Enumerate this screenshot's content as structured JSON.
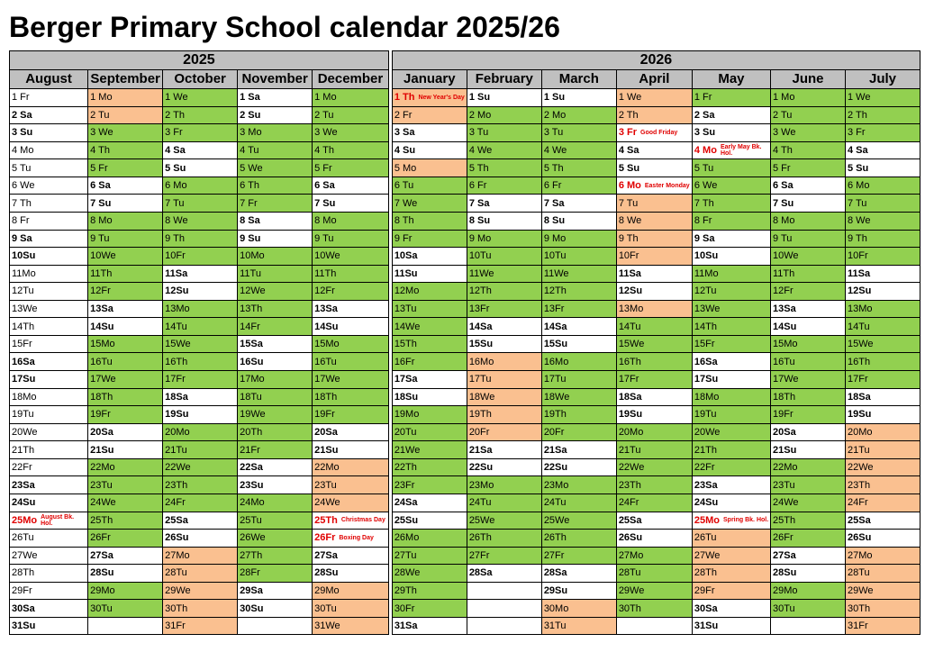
{
  "title": "Berger Primary School calendar 2025/26",
  "years": [
    "2025",
    "2026"
  ],
  "months": [
    "August",
    "September",
    "October",
    "November",
    "December",
    "January",
    "February",
    "March",
    "April",
    "May",
    "June",
    "July"
  ],
  "colors": {
    "school": "#92d050",
    "holiday": "#fac090",
    "weekend": "#ffffff",
    "bank_holiday_text": "#e00000",
    "header": "#c0c0c0"
  },
  "calendar": [
    [
      [
        "1 Fr",
        "w"
      ],
      [
        "2 Sa",
        "wb"
      ],
      [
        "3 Su",
        "wb"
      ],
      [
        "4 Mo",
        "w"
      ],
      [
        "5 Tu",
        "w"
      ],
      [
        "6 We",
        "w"
      ],
      [
        "7 Th",
        "w"
      ],
      [
        "8 Fr",
        "w"
      ],
      [
        "9 Sa",
        "wb"
      ],
      [
        "10Su",
        "wb"
      ],
      [
        "11Mo",
        "w"
      ],
      [
        "12Tu",
        "w"
      ],
      [
        "13We",
        "w"
      ],
      [
        "14Th",
        "w"
      ],
      [
        "15Fr",
        "w"
      ],
      [
        "16Sa",
        "wb"
      ],
      [
        "17Su",
        "wb"
      ],
      [
        "18Mo",
        "w"
      ],
      [
        "19Tu",
        "w"
      ],
      [
        "20We",
        "w"
      ],
      [
        "21Th",
        "w"
      ],
      [
        "22Fr",
        "w"
      ],
      [
        "23Sa",
        "wb"
      ],
      [
        "24Su",
        "wb"
      ],
      [
        "25Mo",
        "wh",
        "August Bk. Hol."
      ],
      [
        "26Tu",
        "w"
      ],
      [
        "27We",
        "w"
      ],
      [
        "28Th",
        "w"
      ],
      [
        "29Fr",
        "w"
      ],
      [
        "30Sa",
        "wb"
      ],
      [
        "31Su",
        "wb"
      ]
    ],
    [
      [
        "1 Mo",
        "o"
      ],
      [
        "2 Tu",
        "o"
      ],
      [
        "3 We",
        "g"
      ],
      [
        "4 Th",
        "g"
      ],
      [
        "5 Fr",
        "g"
      ],
      [
        "6 Sa",
        "wb"
      ],
      [
        "7 Su",
        "wb"
      ],
      [
        "8 Mo",
        "g"
      ],
      [
        "9 Tu",
        "g"
      ],
      [
        "10We",
        "g"
      ],
      [
        "11Th",
        "g"
      ],
      [
        "12Fr",
        "g"
      ],
      [
        "13Sa",
        "wb"
      ],
      [
        "14Su",
        "wb"
      ],
      [
        "15Mo",
        "g"
      ],
      [
        "16Tu",
        "g"
      ],
      [
        "17We",
        "g"
      ],
      [
        "18Th",
        "g"
      ],
      [
        "19Fr",
        "g"
      ],
      [
        "20Sa",
        "wb"
      ],
      [
        "21Su",
        "wb"
      ],
      [
        "22Mo",
        "g"
      ],
      [
        "23Tu",
        "g"
      ],
      [
        "24We",
        "g"
      ],
      [
        "25Th",
        "g"
      ],
      [
        "26Fr",
        "g"
      ],
      [
        "27Sa",
        "wb"
      ],
      [
        "28Su",
        "wb"
      ],
      [
        "29Mo",
        "g"
      ],
      [
        "30Tu",
        "g"
      ],
      [
        "",
        "w"
      ]
    ],
    [
      [
        "1 We",
        "g"
      ],
      [
        "2 Th",
        "g"
      ],
      [
        "3 Fr",
        "g"
      ],
      [
        "4 Sa",
        "wb"
      ],
      [
        "5 Su",
        "wb"
      ],
      [
        "6 Mo",
        "g"
      ],
      [
        "7 Tu",
        "g"
      ],
      [
        "8 We",
        "g"
      ],
      [
        "9 Th",
        "g"
      ],
      [
        "10Fr",
        "g"
      ],
      [
        "11Sa",
        "wb"
      ],
      [
        "12Su",
        "wb"
      ],
      [
        "13Mo",
        "g"
      ],
      [
        "14Tu",
        "g"
      ],
      [
        "15We",
        "g"
      ],
      [
        "16Th",
        "g"
      ],
      [
        "17Fr",
        "g"
      ],
      [
        "18Sa",
        "wb"
      ],
      [
        "19Su",
        "wb"
      ],
      [
        "20Mo",
        "g"
      ],
      [
        "21Tu",
        "g"
      ],
      [
        "22We",
        "g"
      ],
      [
        "23Th",
        "g"
      ],
      [
        "24Fr",
        "g"
      ],
      [
        "25Sa",
        "wb"
      ],
      [
        "26Su",
        "wb"
      ],
      [
        "27Mo",
        "o"
      ],
      [
        "28Tu",
        "o"
      ],
      [
        "29We",
        "o"
      ],
      [
        "30Th",
        "o"
      ],
      [
        "31Fr",
        "o"
      ]
    ],
    [
      [
        "1 Sa",
        "wb"
      ],
      [
        "2 Su",
        "wb"
      ],
      [
        "3 Mo",
        "g"
      ],
      [
        "4 Tu",
        "g"
      ],
      [
        "5 We",
        "g"
      ],
      [
        "6 Th",
        "g"
      ],
      [
        "7 Fr",
        "g"
      ],
      [
        "8 Sa",
        "wb"
      ],
      [
        "9 Su",
        "wb"
      ],
      [
        "10Mo",
        "g"
      ],
      [
        "11Tu",
        "g"
      ],
      [
        "12We",
        "g"
      ],
      [
        "13Th",
        "g"
      ],
      [
        "14Fr",
        "g"
      ],
      [
        "15Sa",
        "wb"
      ],
      [
        "16Su",
        "wb"
      ],
      [
        "17Mo",
        "g"
      ],
      [
        "18Tu",
        "g"
      ],
      [
        "19We",
        "g"
      ],
      [
        "20Th",
        "g"
      ],
      [
        "21Fr",
        "g"
      ],
      [
        "22Sa",
        "wb"
      ],
      [
        "23Su",
        "wb"
      ],
      [
        "24Mo",
        "g"
      ],
      [
        "25Tu",
        "g"
      ],
      [
        "26We",
        "g"
      ],
      [
        "27Th",
        "g"
      ],
      [
        "28Fr",
        "g"
      ],
      [
        "29Sa",
        "wb"
      ],
      [
        "30Su",
        "wb"
      ],
      [
        "",
        "w"
      ]
    ],
    [
      [
        "1 Mo",
        "g"
      ],
      [
        "2 Tu",
        "g"
      ],
      [
        "3 We",
        "g"
      ],
      [
        "4 Th",
        "g"
      ],
      [
        "5 Fr",
        "g"
      ],
      [
        "6 Sa",
        "wb"
      ],
      [
        "7 Su",
        "wb"
      ],
      [
        "8 Mo",
        "g"
      ],
      [
        "9 Tu",
        "g"
      ],
      [
        "10We",
        "g"
      ],
      [
        "11Th",
        "g"
      ],
      [
        "12Fr",
        "g"
      ],
      [
        "13Sa",
        "wb"
      ],
      [
        "14Su",
        "wb"
      ],
      [
        "15Mo",
        "g"
      ],
      [
        "16Tu",
        "g"
      ],
      [
        "17We",
        "g"
      ],
      [
        "18Th",
        "g"
      ],
      [
        "19Fr",
        "g"
      ],
      [
        "20Sa",
        "wb"
      ],
      [
        "21Su",
        "wb"
      ],
      [
        "22Mo",
        "o"
      ],
      [
        "23Tu",
        "o"
      ],
      [
        "24We",
        "o"
      ],
      [
        "25Th",
        "wh",
        "Christmas Day"
      ],
      [
        "26Fr",
        "wh",
        "Boxing Day"
      ],
      [
        "27Sa",
        "wb"
      ],
      [
        "28Su",
        "wb"
      ],
      [
        "29Mo",
        "o"
      ],
      [
        "30Tu",
        "o"
      ],
      [
        "31We",
        "o"
      ]
    ],
    [
      [
        "1 Th",
        "oh",
        "New Year's Day"
      ],
      [
        "2 Fr",
        "o"
      ],
      [
        "3 Sa",
        "wb"
      ],
      [
        "4 Su",
        "wb"
      ],
      [
        "5 Mo",
        "o"
      ],
      [
        "6 Tu",
        "g"
      ],
      [
        "7 We",
        "g"
      ],
      [
        "8 Th",
        "g"
      ],
      [
        "9 Fr",
        "g"
      ],
      [
        "10Sa",
        "wb"
      ],
      [
        "11Su",
        "wb"
      ],
      [
        "12Mo",
        "g"
      ],
      [
        "13Tu",
        "g"
      ],
      [
        "14We",
        "g"
      ],
      [
        "15Th",
        "g"
      ],
      [
        "16Fr",
        "g"
      ],
      [
        "17Sa",
        "wb"
      ],
      [
        "18Su",
        "wb"
      ],
      [
        "19Mo",
        "g"
      ],
      [
        "20Tu",
        "g"
      ],
      [
        "21We",
        "g"
      ],
      [
        "22Th",
        "g"
      ],
      [
        "23Fr",
        "g"
      ],
      [
        "24Sa",
        "wb"
      ],
      [
        "25Su",
        "wb"
      ],
      [
        "26Mo",
        "g"
      ],
      [
        "27Tu",
        "g"
      ],
      [
        "28We",
        "g"
      ],
      [
        "29Th",
        "g"
      ],
      [
        "30Fr",
        "g"
      ],
      [
        "31Sa",
        "wb"
      ]
    ],
    [
      [
        "1 Su",
        "wb"
      ],
      [
        "2 Mo",
        "g"
      ],
      [
        "3 Tu",
        "g"
      ],
      [
        "4 We",
        "g"
      ],
      [
        "5 Th",
        "g"
      ],
      [
        "6 Fr",
        "g"
      ],
      [
        "7 Sa",
        "wb"
      ],
      [
        "8 Su",
        "wb"
      ],
      [
        "9 Mo",
        "g"
      ],
      [
        "10Tu",
        "g"
      ],
      [
        "11We",
        "g"
      ],
      [
        "12Th",
        "g"
      ],
      [
        "13Fr",
        "g"
      ],
      [
        "14Sa",
        "wb"
      ],
      [
        "15Su",
        "wb"
      ],
      [
        "16Mo",
        "o"
      ],
      [
        "17Tu",
        "o"
      ],
      [
        "18We",
        "o"
      ],
      [
        "19Th",
        "o"
      ],
      [
        "20Fr",
        "o"
      ],
      [
        "21Sa",
        "wb"
      ],
      [
        "22Su",
        "wb"
      ],
      [
        "23Mo",
        "g"
      ],
      [
        "24Tu",
        "g"
      ],
      [
        "25We",
        "g"
      ],
      [
        "26Th",
        "g"
      ],
      [
        "27Fr",
        "g"
      ],
      [
        "28Sa",
        "wb"
      ],
      [
        "",
        "w"
      ],
      [
        "",
        "w"
      ],
      [
        "",
        "w"
      ]
    ],
    [
      [
        "1 Su",
        "wb"
      ],
      [
        "2 Mo",
        "g"
      ],
      [
        "3 Tu",
        "g"
      ],
      [
        "4 We",
        "g"
      ],
      [
        "5 Th",
        "g"
      ],
      [
        "6 Fr",
        "g"
      ],
      [
        "7 Sa",
        "wb"
      ],
      [
        "8 Su",
        "wb"
      ],
      [
        "9 Mo",
        "g"
      ],
      [
        "10Tu",
        "g"
      ],
      [
        "11We",
        "g"
      ],
      [
        "12Th",
        "g"
      ],
      [
        "13Fr",
        "g"
      ],
      [
        "14Sa",
        "wb"
      ],
      [
        "15Su",
        "wb"
      ],
      [
        "16Mo",
        "g"
      ],
      [
        "17Tu",
        "g"
      ],
      [
        "18We",
        "g"
      ],
      [
        "19Th",
        "g"
      ],
      [
        "20Fr",
        "g"
      ],
      [
        "21Sa",
        "wb"
      ],
      [
        "22Su",
        "wb"
      ],
      [
        "23Mo",
        "g"
      ],
      [
        "24Tu",
        "g"
      ],
      [
        "25We",
        "g"
      ],
      [
        "26Th",
        "g"
      ],
      [
        "27Fr",
        "g"
      ],
      [
        "28Sa",
        "wb"
      ],
      [
        "29Su",
        "wb"
      ],
      [
        "30Mo",
        "o"
      ],
      [
        "31Tu",
        "o"
      ]
    ],
    [
      [
        "1 We",
        "o"
      ],
      [
        "2 Th",
        "o"
      ],
      [
        "3 Fr",
        "wh",
        "Good Friday"
      ],
      [
        "4 Sa",
        "wb"
      ],
      [
        "5 Su",
        "wb"
      ],
      [
        "6 Mo",
        "wh",
        "Easter Monday"
      ],
      [
        "7 Tu",
        "o"
      ],
      [
        "8 We",
        "o"
      ],
      [
        "9 Th",
        "o"
      ],
      [
        "10Fr",
        "o"
      ],
      [
        "11Sa",
        "wb"
      ],
      [
        "12Su",
        "wb"
      ],
      [
        "13Mo",
        "o"
      ],
      [
        "14Tu",
        "g"
      ],
      [
        "15We",
        "g"
      ],
      [
        "16Th",
        "g"
      ],
      [
        "17Fr",
        "g"
      ],
      [
        "18Sa",
        "wb"
      ],
      [
        "19Su",
        "wb"
      ],
      [
        "20Mo",
        "g"
      ],
      [
        "21Tu",
        "g"
      ],
      [
        "22We",
        "g"
      ],
      [
        "23Th",
        "g"
      ],
      [
        "24Fr",
        "g"
      ],
      [
        "25Sa",
        "wb"
      ],
      [
        "26Su",
        "wb"
      ],
      [
        "27Mo",
        "g"
      ],
      [
        "28Tu",
        "g"
      ],
      [
        "29We",
        "g"
      ],
      [
        "30Th",
        "g"
      ],
      [
        "",
        "w"
      ]
    ],
    [
      [
        "1 Fr",
        "g"
      ],
      [
        "2 Sa",
        "wb"
      ],
      [
        "3 Su",
        "wb"
      ],
      [
        "4 Mo",
        "wh",
        "Early May Bk. Hol."
      ],
      [
        "5 Tu",
        "g"
      ],
      [
        "6 We",
        "g"
      ],
      [
        "7 Th",
        "g"
      ],
      [
        "8 Fr",
        "g"
      ],
      [
        "9 Sa",
        "wb"
      ],
      [
        "10Su",
        "wb"
      ],
      [
        "11Mo",
        "g"
      ],
      [
        "12Tu",
        "g"
      ],
      [
        "13We",
        "g"
      ],
      [
        "14Th",
        "g"
      ],
      [
        "15Fr",
        "g"
      ],
      [
        "16Sa",
        "wb"
      ],
      [
        "17Su",
        "wb"
      ],
      [
        "18Mo",
        "g"
      ],
      [
        "19Tu",
        "g"
      ],
      [
        "20We",
        "g"
      ],
      [
        "21Th",
        "g"
      ],
      [
        "22Fr",
        "g"
      ],
      [
        "23Sa",
        "wb"
      ],
      [
        "24Su",
        "wb"
      ],
      [
        "25Mo",
        "wh",
        "Spring Bk. Hol."
      ],
      [
        "26Tu",
        "o"
      ],
      [
        "27We",
        "o"
      ],
      [
        "28Th",
        "o"
      ],
      [
        "29Fr",
        "o"
      ],
      [
        "30Sa",
        "wb"
      ],
      [
        "31Su",
        "wb"
      ]
    ],
    [
      [
        "1 Mo",
        "g"
      ],
      [
        "2 Tu",
        "g"
      ],
      [
        "3 We",
        "g"
      ],
      [
        "4 Th",
        "g"
      ],
      [
        "5 Fr",
        "g"
      ],
      [
        "6 Sa",
        "wb"
      ],
      [
        "7 Su",
        "wb"
      ],
      [
        "8 Mo",
        "g"
      ],
      [
        "9 Tu",
        "g"
      ],
      [
        "10We",
        "g"
      ],
      [
        "11Th",
        "g"
      ],
      [
        "12Fr",
        "g"
      ],
      [
        "13Sa",
        "wb"
      ],
      [
        "14Su",
        "wb"
      ],
      [
        "15Mo",
        "g"
      ],
      [
        "16Tu",
        "g"
      ],
      [
        "17We",
        "g"
      ],
      [
        "18Th",
        "g"
      ],
      [
        "19Fr",
        "g"
      ],
      [
        "20Sa",
        "wb"
      ],
      [
        "21Su",
        "wb"
      ],
      [
        "22Mo",
        "g"
      ],
      [
        "23Tu",
        "g"
      ],
      [
        "24We",
        "g"
      ],
      [
        "25Th",
        "g"
      ],
      [
        "26Fr",
        "g"
      ],
      [
        "27Sa",
        "wb"
      ],
      [
        "28Su",
        "wb"
      ],
      [
        "29Mo",
        "g"
      ],
      [
        "30Tu",
        "g"
      ],
      [
        "",
        "w"
      ]
    ],
    [
      [
        "1 We",
        "g"
      ],
      [
        "2 Th",
        "g"
      ],
      [
        "3 Fr",
        "g"
      ],
      [
        "4 Sa",
        "wb"
      ],
      [
        "5 Su",
        "wb"
      ],
      [
        "6 Mo",
        "g"
      ],
      [
        "7 Tu",
        "g"
      ],
      [
        "8 We",
        "g"
      ],
      [
        "9 Th",
        "g"
      ],
      [
        "10Fr",
        "g"
      ],
      [
        "11Sa",
        "wb"
      ],
      [
        "12Su",
        "wb"
      ],
      [
        "13Mo",
        "g"
      ],
      [
        "14Tu",
        "g"
      ],
      [
        "15We",
        "g"
      ],
      [
        "16Th",
        "g"
      ],
      [
        "17Fr",
        "g"
      ],
      [
        "18Sa",
        "wb"
      ],
      [
        "19Su",
        "wb"
      ],
      [
        "20Mo",
        "o"
      ],
      [
        "21Tu",
        "o"
      ],
      [
        "22We",
        "o"
      ],
      [
        "23Th",
        "o"
      ],
      [
        "24Fr",
        "o"
      ],
      [
        "25Sa",
        "wb"
      ],
      [
        "26Su",
        "wb"
      ],
      [
        "27Mo",
        "o"
      ],
      [
        "28Tu",
        "o"
      ],
      [
        "29We",
        "o"
      ],
      [
        "30Th",
        "o"
      ],
      [
        "31Fr",
        "o"
      ]
    ]
  ]
}
